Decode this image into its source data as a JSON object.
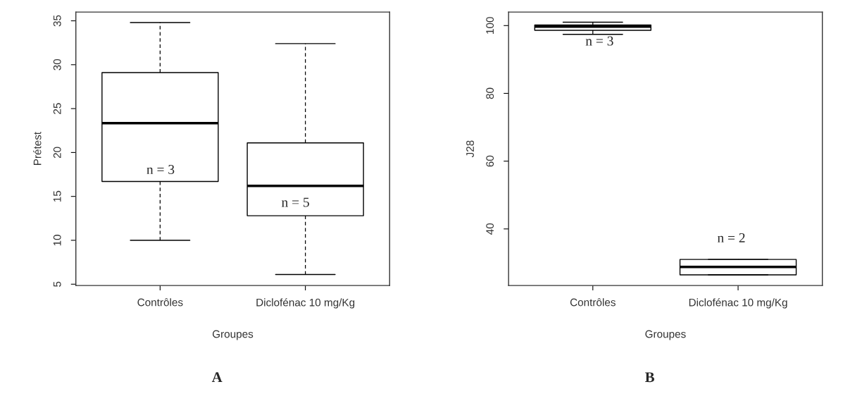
{
  "chart_data": [
    {
      "type": "box",
      "title": "A",
      "xlabel": "Groupes",
      "ylabel": "Prétest",
      "categories": [
        "Contrôles",
        "Diclofénac 10 mg/Kg"
      ],
      "boxes": [
        {
          "low": 10.0,
          "q1": 16.7,
          "median": 23.35,
          "q3": 29.1,
          "high": 34.8
        },
        {
          "low": 6.1,
          "q1": 12.8,
          "median": 16.2,
          "q3": 21.1,
          "high": 32.4
        }
      ],
      "ylim": [
        4.85,
        36
      ],
      "yticks": [
        5,
        10,
        15,
        20,
        25,
        30,
        35
      ],
      "grid": false,
      "annotations": [
        "n = 3",
        "n = 5"
      ]
    },
    {
      "type": "box",
      "title": "B",
      "xlabel": "Groupes",
      "ylabel": "J28",
      "categories": [
        "Contrôles",
        "Diclofénac 10 mg/Kg"
      ],
      "boxes": [
        {
          "low": 97.4,
          "q1": 98.6,
          "median": 99.7,
          "q3": 100.2,
          "high": 101.0
        },
        {
          "low": 26.45,
          "q1": 26.45,
          "median": 28.8,
          "q3": 31.0,
          "high": 31.0
        }
      ],
      "ylim": [
        23.3,
        104
      ],
      "yticks": [
        40,
        60,
        80,
        100
      ],
      "grid": false,
      "annotations": [
        "n = 3",
        "n = 2"
      ]
    }
  ]
}
